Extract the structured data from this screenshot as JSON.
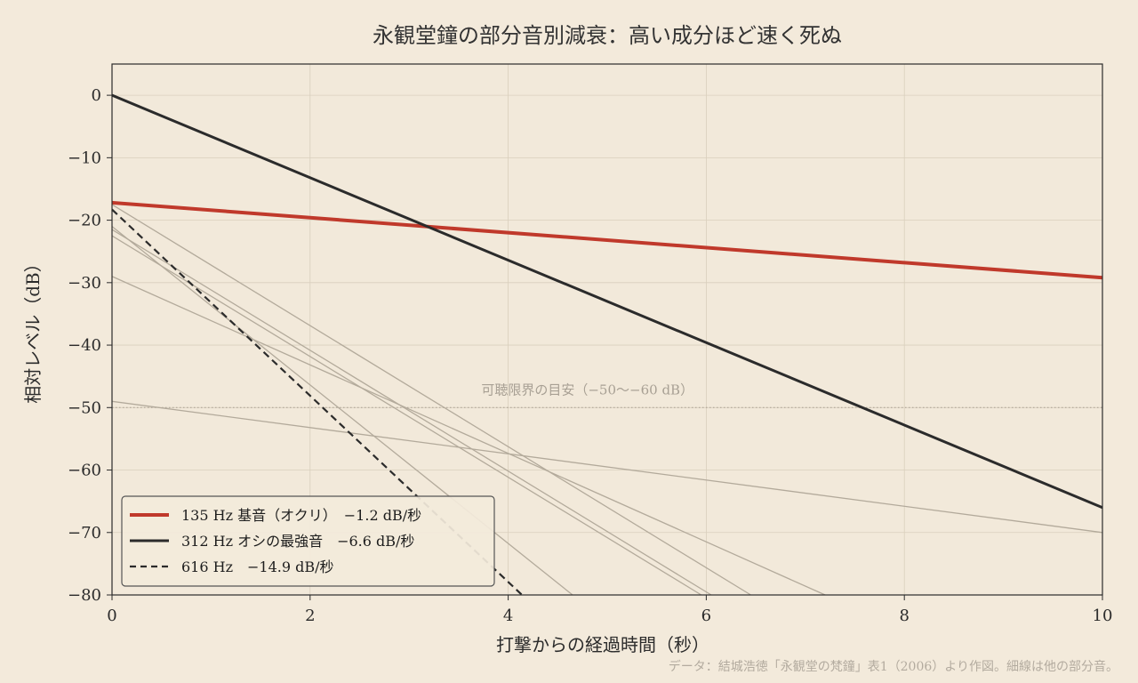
{
  "chart_data": {
    "type": "line",
    "title": "永観堂鐘の部分音別減衰：高い成分ほど速く死ぬ",
    "xlabel": "打撃からの経過時間（秒）",
    "ylabel": "相対レベル（dB）",
    "xlim": [
      0,
      10
    ],
    "ylim": [
      -80,
      5
    ],
    "xticks": [
      0,
      2,
      4,
      6,
      8,
      10
    ],
    "yticks": [
      0,
      -10,
      -20,
      -30,
      -40,
      -50,
      -60,
      -70,
      -80
    ],
    "ytick_labels": [
      "0",
      "−10",
      "−20",
      "−30",
      "−40",
      "−50",
      "−60",
      "−70",
      "−80"
    ],
    "grid": true,
    "legend_position": "bottom-left",
    "series": [
      {
        "name": "135 Hz 基音（オクリ）　−1.2 dB/秒",
        "color": "#c0392b",
        "style": "solid",
        "emphasis": "primary",
        "x": [
          0,
          10
        ],
        "y": [
          -17.2,
          -29.2
        ]
      },
      {
        "name": "312 Hz オシの最強音　−6.6 dB/秒",
        "color": "#2b2b2b",
        "style": "solid",
        "emphasis": "primary",
        "x": [
          0,
          10
        ],
        "y": [
          0,
          -66
        ]
      },
      {
        "name": "616 Hz　−14.9 dB/秒",
        "color": "#2b2b2b",
        "style": "dashed",
        "emphasis": "primary",
        "x": [
          0,
          4.14
        ],
        "y": [
          -18.3,
          -80
        ]
      },
      {
        "color": "#b3aa9b",
        "style": "solid",
        "emphasis": "minor",
        "x": [
          0,
          10
        ],
        "y": [
          -49,
          -70
        ]
      },
      {
        "color": "#b3aa9b",
        "style": "solid",
        "emphasis": "minor",
        "x": [
          0,
          7.2
        ],
        "y": [
          -29,
          -80
        ]
      },
      {
        "color": "#b3aa9b",
        "style": "solid",
        "emphasis": "minor",
        "x": [
          0,
          6.45
        ],
        "y": [
          -17.5,
          -80
        ]
      },
      {
        "color": "#b3aa9b",
        "style": "solid",
        "emphasis": "minor",
        "x": [
          0,
          6.05
        ],
        "y": [
          -21.5,
          -80
        ]
      },
      {
        "color": "#b3aa9b",
        "style": "solid",
        "emphasis": "minor",
        "x": [
          0,
          5.95
        ],
        "y": [
          -22.5,
          -80
        ]
      },
      {
        "color": "#b3aa9b",
        "style": "solid",
        "emphasis": "minor",
        "x": [
          0,
          4.65
        ],
        "y": [
          -21,
          -80
        ]
      }
    ],
    "reference_line": {
      "y": -50,
      "label": "可聴限界の目安（−50〜−60 dB）",
      "color": "#a8a094"
    },
    "source_note": "データ：結城浩徳「永観堂の梵鐘」表1（2006）より作図。細線は他の部分音。"
  }
}
